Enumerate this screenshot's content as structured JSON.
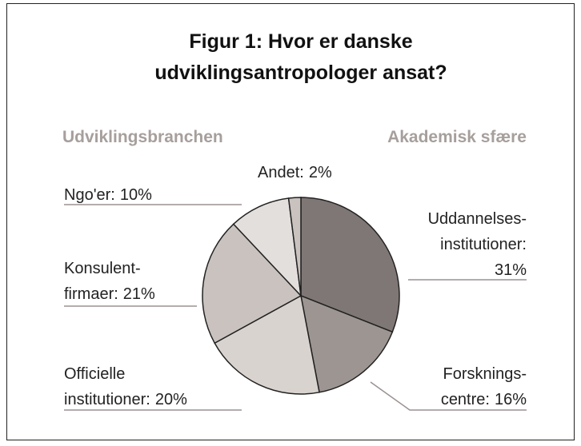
{
  "chart_data": {
    "type": "pie",
    "title": [
      "Figur 1: Hvor er danske",
      "udviklingsantropologer ansat?"
    ],
    "group_labels": [
      "Udviklingsbranchen",
      "Akademisk sfære"
    ],
    "categories": [
      [
        "Uddannelses-",
        "institutioner:"
      ],
      [
        "Forsknings-",
        "centre:"
      ],
      [
        "Officielle",
        "institutioner:"
      ],
      [
        "Konsulent-",
        "firmaer:"
      ],
      [
        "Ngo'er:"
      ],
      [
        "Andet:"
      ]
    ],
    "values": [
      31,
      16,
      20,
      21,
      10,
      2
    ],
    "value_labels": [
      "31%",
      "16%",
      "20%",
      "21%",
      "10%",
      "2%"
    ],
    "colors": [
      "#7f7775",
      "#9d9592",
      "#d9d3d0",
      "#c9c2bf",
      "#e3dfdd",
      "#c9c2bf"
    ]
  }
}
